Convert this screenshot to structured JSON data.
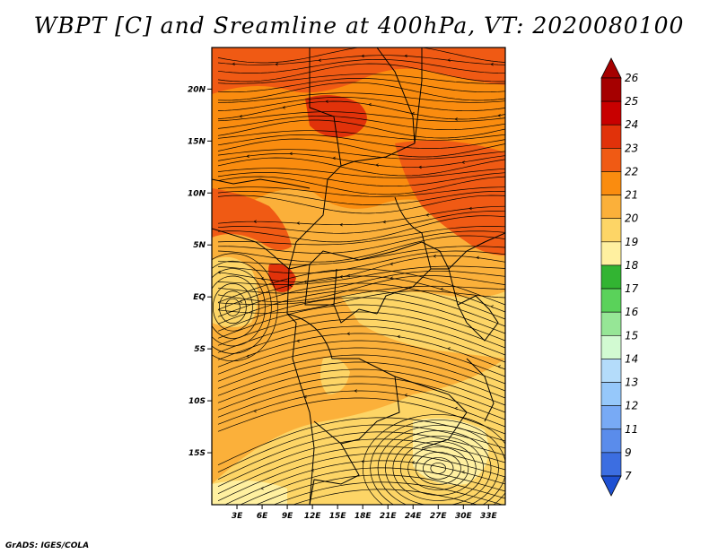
{
  "title": "WBPT [C] and Sreamline at 400hPa, VT: 2020080100",
  "footer": "GrADS: IGES/COLA",
  "map": {
    "lon_range": [
      0,
      35
    ],
    "lat_range": [
      -20,
      24
    ],
    "lat_ticks": [
      {
        "value": 20,
        "label": "20N"
      },
      {
        "value": 15,
        "label": "15N"
      },
      {
        "value": 10,
        "label": "10N"
      },
      {
        "value": 5,
        "label": "5N"
      },
      {
        "value": 0,
        "label": "EQ"
      },
      {
        "value": -5,
        "label": "5S"
      },
      {
        "value": -10,
        "label": "10S"
      },
      {
        "value": -15,
        "label": "15S"
      }
    ],
    "lon_ticks": [
      {
        "value": 3,
        "label": "3E"
      },
      {
        "value": 6,
        "label": "6E"
      },
      {
        "value": 9,
        "label": "9E"
      },
      {
        "value": 12,
        "label": "12E"
      },
      {
        "value": 15,
        "label": "15E"
      },
      {
        "value": 18,
        "label": "18E"
      },
      {
        "value": 21,
        "label": "21E"
      },
      {
        "value": 24,
        "label": "24E"
      },
      {
        "value": 27,
        "label": "27E"
      },
      {
        "value": 30,
        "label": "30E"
      },
      {
        "value": 33,
        "label": "33E"
      }
    ]
  },
  "colorbar": {
    "levels": [
      {
        "label": "26",
        "color": "#a50000"
      },
      {
        "label": "25",
        "color": "#c80000"
      },
      {
        "label": "24",
        "color": "#e1320a"
      },
      {
        "label": "23",
        "color": "#f05a14"
      },
      {
        "label": "22",
        "color": "#fa8c0f"
      },
      {
        "label": "21",
        "color": "#fbb03a"
      },
      {
        "label": "20",
        "color": "#fdd566"
      },
      {
        "label": "19",
        "color": "#fff0a0"
      },
      {
        "label": "18",
        "color": "#32b432"
      },
      {
        "label": "17",
        "color": "#5ad25a"
      },
      {
        "label": "16",
        "color": "#96e696"
      },
      {
        "label": "15",
        "color": "#d2fad2"
      },
      {
        "label": "14",
        "color": "#b4dcfa"
      },
      {
        "label": "13",
        "color": "#96c8fa"
      },
      {
        "label": "12",
        "color": "#78aaf5"
      },
      {
        "label": "11",
        "color": "#5a8ceb"
      },
      {
        "label": "9",
        "color": "#3c6ee1"
      },
      {
        "label": "7",
        "color": "#1e50d2"
      }
    ],
    "top_triangle_color": "#a50000",
    "bottom_triangle_color": "#1e50d2"
  }
}
